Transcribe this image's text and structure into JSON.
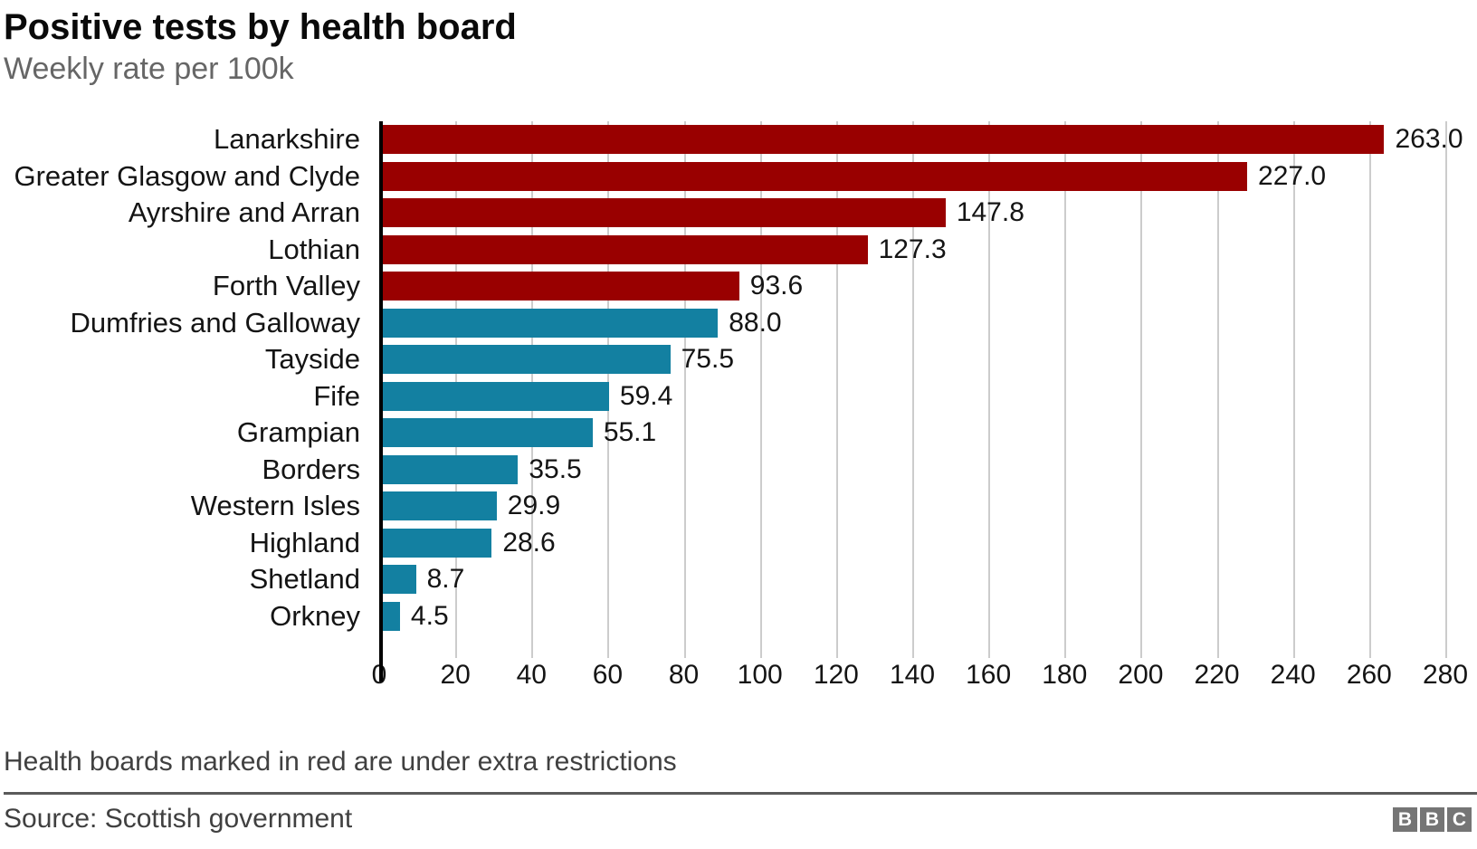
{
  "header": {
    "title": "Positive tests by health board",
    "subtitle": "Weekly rate per 100k"
  },
  "chart_data": {
    "type": "bar",
    "orientation": "horizontal",
    "title": "Positive tests by health board",
    "subtitle": "Weekly rate per 100k",
    "categories": [
      "Lanarkshire",
      "Greater Glasgow and Clyde",
      "Ayrshire and Arran",
      "Lothian",
      "Forth Valley",
      "Dumfries and Galloway",
      "Tayside",
      "Fife",
      "Grampian",
      "Borders",
      "Western Isles",
      "Highland",
      "Shetland",
      "Orkney"
    ],
    "values": [
      263.0,
      227.0,
      147.8,
      127.3,
      93.6,
      88.0,
      75.5,
      59.4,
      55.1,
      35.5,
      29.9,
      28.6,
      8.7,
      4.5
    ],
    "value_labels": [
      "263.0",
      "227.0",
      "147.8",
      "127.3",
      "93.6",
      "88.0",
      "75.5",
      "59.4",
      "55.1",
      "35.5",
      "29.9",
      "28.6",
      "8.7",
      "4.5"
    ],
    "restricted": [
      true,
      true,
      true,
      true,
      true,
      false,
      false,
      false,
      false,
      false,
      false,
      false,
      false,
      false
    ],
    "xlim": [
      0,
      280
    ],
    "xticks": [
      0,
      20,
      40,
      60,
      80,
      100,
      120,
      140,
      160,
      180,
      200,
      220,
      240,
      260,
      280
    ],
    "grid": true,
    "legend": "none"
  },
  "colors": {
    "restricted_bar": "#990000",
    "normal_bar": "#1380a1",
    "gridline": "#cccccc",
    "axis": "#000000",
    "title_text": "#0a0a0a",
    "subtitle_text": "#666666",
    "footnote_text": "#404040",
    "divider": "#5a5a5a",
    "logo_bg": "#757575",
    "logo_text": "#ffffff"
  },
  "footer": {
    "note": "Health boards marked in red are under extra restrictions",
    "source": "Source: Scottish government"
  },
  "logo": {
    "letters": [
      "B",
      "B",
      "C"
    ]
  }
}
